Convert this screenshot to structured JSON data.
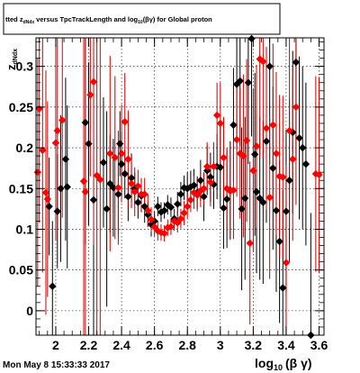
{
  "header": {
    "title_prefix": "tted  z",
    "title_sub_z": "dNdx",
    "title_mid": "  versus TpcTrackLength and log",
    "title_sub_log": "10",
    "title_suffix": "(βγ) for Global proton"
  },
  "footer": {
    "timestamp": "Mon May  8 15:33:33 2017"
  },
  "colors": {
    "series_black": "#000000",
    "series_red": "#ff0000",
    "error_red": "#cc0000"
  },
  "chart_data": {
    "type": "scatter",
    "title": "tted z_dNdx versus TpcTrackLength and log_10(βγ) for Global proton",
    "xlabel": "log",
    "xlabel_sub": "10",
    "xlabel_suffix": "(β γ)",
    "ylabel": "z",
    "ylabel_sub": "dNdx",
    "xlim": [
      1.88,
      3.63
    ],
    "ylim": [
      -0.03,
      0.335
    ],
    "xticks": [
      {
        "value": 2.0,
        "label": "2"
      },
      {
        "value": 2.2,
        "label": "2.2"
      },
      {
        "value": 2.4,
        "label": "2.4"
      },
      {
        "value": 2.6,
        "label": "2.6"
      },
      {
        "value": 2.8,
        "label": "2.8"
      },
      {
        "value": 3.0,
        "label": "3"
      },
      {
        "value": 3.2,
        "label": "3.2"
      },
      {
        "value": 3.4,
        "label": "3.4"
      },
      {
        "value": 3.6,
        "label": "3.6"
      }
    ],
    "yticks": [
      {
        "value": 0.0,
        "label": "0"
      },
      {
        "value": 0.05,
        "label": "0.05"
      },
      {
        "value": 0.1,
        "label": "0.1"
      },
      {
        "value": 0.15,
        "label": "0.15"
      },
      {
        "value": 0.2,
        "label": "0.2"
      },
      {
        "value": 0.25,
        "label": "0.25"
      },
      {
        "value": 0.3,
        "label": "0.3"
      }
    ],
    "grid": true,
    "series": [
      {
        "color": "#000000",
        "marker": "diamond",
        "points": [
          [
            1.96,
            0.128,
            0.06
          ],
          [
            1.98,
            0.03,
            0.08
          ],
          [
            2.01,
            0.122,
            0.07
          ],
          [
            2.03,
            0.15,
            0.09
          ],
          [
            2.06,
            0.186,
            0.1
          ],
          [
            2.07,
            0.152,
            0.1
          ],
          [
            2.18,
            0.231,
            0.15
          ],
          [
            2.2,
            0.205,
            0.1
          ],
          [
            2.23,
            0.136,
            0.2
          ],
          [
            2.29,
            0.182,
            0.08
          ],
          [
            2.31,
            0.125,
            0.12
          ],
          [
            2.33,
            0.156,
            0.06
          ],
          [
            2.35,
            0.151,
            0.06
          ],
          [
            2.38,
            0.143,
            0.05
          ],
          [
            2.39,
            0.205,
            0.04
          ],
          [
            2.4,
            0.18,
            0.04
          ],
          [
            2.42,
            0.168,
            0.03
          ],
          [
            2.44,
            0.14,
            0.03
          ],
          [
            2.46,
            0.163,
            0.03
          ],
          [
            2.48,
            0.15,
            0.02
          ],
          [
            2.5,
            0.133,
            0.02
          ],
          [
            2.52,
            0.141,
            0.02
          ],
          [
            2.54,
            0.128,
            0.02
          ],
          [
            2.56,
            0.118,
            0.015
          ],
          [
            2.58,
            0.106,
            0.015
          ],
          [
            2.6,
            0.11,
            0.012
          ],
          [
            2.62,
            0.128,
            0.012
          ],
          [
            2.64,
            0.121,
            0.012
          ],
          [
            2.66,
            0.123,
            0.01
          ],
          [
            2.68,
            0.13,
            0.012
          ],
          [
            2.7,
            0.127,
            0.012
          ],
          [
            2.72,
            0.113,
            0.012
          ],
          [
            2.74,
            0.131,
            0.015
          ],
          [
            2.76,
            0.143,
            0.015
          ],
          [
            2.78,
            0.151,
            0.015
          ],
          [
            2.8,
            0.15,
            0.02
          ],
          [
            2.82,
            0.152,
            0.02
          ],
          [
            2.84,
            0.154,
            0.02
          ],
          [
            2.86,
            0.145,
            0.02
          ],
          [
            2.88,
            0.16,
            0.025
          ],
          [
            2.9,
            0.14,
            0.03
          ],
          [
            2.92,
            0.172,
            0.03
          ],
          [
            2.94,
            0.164,
            0.03
          ],
          [
            2.96,
            0.155,
            0.03
          ],
          [
            2.98,
            0.177,
            0.04
          ],
          [
            3.0,
            0.176,
            0.05
          ],
          [
            3.02,
            0.126,
            0.05
          ],
          [
            3.04,
            0.137,
            0.06
          ],
          [
            3.06,
            0.148,
            0.06
          ],
          [
            3.08,
            0.228,
            0.07
          ],
          [
            3.1,
            0.278,
            0.08
          ],
          [
            3.12,
            0.282,
            0.08
          ],
          [
            3.13,
            0.125,
            0.1
          ],
          [
            3.15,
            0.138,
            0.1
          ],
          [
            3.17,
            0.28,
            0.1
          ],
          [
            3.19,
            0.334,
            0.12
          ],
          [
            3.21,
            0.192,
            0.1
          ],
          [
            3.22,
            0.146,
            0.1
          ],
          [
            3.24,
            0.138,
            0.1
          ],
          [
            3.26,
            0.133,
            0.1
          ],
          [
            3.28,
            0.208,
            0.1
          ],
          [
            3.3,
            0.3,
            0.12
          ],
          [
            3.32,
            0.175,
            0.1
          ],
          [
            3.34,
            0.123,
            0.1
          ],
          [
            3.36,
            0.085,
            0.1
          ],
          [
            3.38,
            0.028,
            0.12
          ],
          [
            3.4,
            0.122,
            0.1
          ],
          [
            3.42,
            0.16,
            0.1
          ],
          [
            3.44,
            0.219,
            0.1
          ],
          [
            3.46,
            0.305,
            0.12
          ],
          [
            3.48,
            0.212,
            0.1
          ],
          [
            3.5,
            0.2,
            0.1
          ],
          [
            3.52,
            0.18,
            0.1
          ],
          [
            3.55,
            -0.03,
            0.15
          ]
        ]
      },
      {
        "color": "#ff0000",
        "marker": "diamond",
        "points": [
          [
            1.89,
            0.17,
            0.14
          ],
          [
            1.9,
            0.248,
            0.14
          ],
          [
            1.92,
            0.197,
            0.15
          ],
          [
            1.94,
            0.145,
            0.15
          ],
          [
            1.95,
            0.137,
            0.12
          ],
          [
            2.0,
            0.206,
            0.12
          ],
          [
            2.01,
            0.221,
            0.12
          ],
          [
            2.04,
            0.234,
            0.12
          ],
          [
            2.17,
            0.159,
            0.3
          ],
          [
            2.18,
            0.146,
            0.3
          ],
          [
            2.21,
            0.265,
            0.1
          ],
          [
            2.23,
            0.281,
            0.2
          ],
          [
            2.25,
            0.166,
            0.2
          ],
          [
            2.27,
            0.161,
            0.2
          ],
          [
            2.33,
            0.193,
            0.12
          ],
          [
            2.36,
            0.188,
            0.1
          ],
          [
            2.38,
            0.151,
            0.07
          ],
          [
            2.4,
            0.193,
            0.06
          ],
          [
            2.42,
            0.232,
            0.06
          ],
          [
            2.44,
            0.186,
            0.06
          ],
          [
            2.46,
            0.156,
            0.03
          ],
          [
            2.48,
            0.146,
            0.03
          ],
          [
            2.5,
            0.153,
            0.02
          ],
          [
            2.52,
            0.143,
            0.02
          ],
          [
            2.54,
            0.143,
            0.02
          ],
          [
            2.56,
            0.123,
            0.02
          ],
          [
            2.58,
            0.112,
            0.015
          ],
          [
            2.6,
            0.103,
            0.012
          ],
          [
            2.62,
            0.098,
            0.012
          ],
          [
            2.64,
            0.096,
            0.01
          ],
          [
            2.66,
            0.095,
            0.01
          ],
          [
            2.68,
            0.102,
            0.01
          ],
          [
            2.7,
            0.103,
            0.01
          ],
          [
            2.72,
            0.11,
            0.012
          ],
          [
            2.74,
            0.108,
            0.012
          ],
          [
            2.76,
            0.113,
            0.012
          ],
          [
            2.78,
            0.12,
            0.015
          ],
          [
            2.8,
            0.128,
            0.015
          ],
          [
            2.82,
            0.136,
            0.015
          ],
          [
            2.84,
            0.145,
            0.02
          ],
          [
            2.86,
            0.142,
            0.02
          ],
          [
            2.88,
            0.147,
            0.02
          ],
          [
            2.9,
            0.15,
            0.02
          ],
          [
            2.92,
            0.177,
            0.03
          ],
          [
            2.94,
            0.158,
            0.03
          ],
          [
            2.96,
            0.177,
            0.03
          ],
          [
            2.98,
            0.24,
            0.04
          ],
          [
            3.0,
            0.23,
            0.05
          ],
          [
            3.02,
            0.188,
            0.05
          ],
          [
            3.04,
            0.15,
            0.05
          ],
          [
            3.06,
            0.147,
            0.06
          ],
          [
            3.08,
            0.148,
            0.06
          ],
          [
            3.1,
            0.21,
            0.07
          ],
          [
            3.12,
            0.193,
            0.08
          ],
          [
            3.14,
            0.19,
            0.1
          ],
          [
            3.16,
            0.209,
            0.1
          ],
          [
            3.18,
            0.083,
            0.1
          ],
          [
            3.2,
            0.172,
            0.1
          ],
          [
            3.22,
            0.202,
            0.1
          ],
          [
            3.24,
            0.309,
            0.12
          ],
          [
            3.26,
            0.306,
            0.12
          ],
          [
            3.28,
            0.224,
            0.1
          ],
          [
            3.3,
            0.139,
            0.1
          ],
          [
            3.32,
            0.228,
            0.1
          ],
          [
            3.34,
            0.193,
            0.1
          ],
          [
            3.36,
            0.165,
            0.1
          ],
          [
            3.38,
            0.164,
            0.1
          ],
          [
            3.4,
            0.059,
            0.12
          ],
          [
            3.42,
            0.221,
            0.12
          ],
          [
            3.44,
            0.186,
            0.1
          ],
          [
            3.46,
            0.25,
            0.12
          ],
          [
            3.58,
            0.168,
            0.12
          ],
          [
            3.6,
            0.167,
            0.12
          ]
        ]
      }
    ]
  }
}
